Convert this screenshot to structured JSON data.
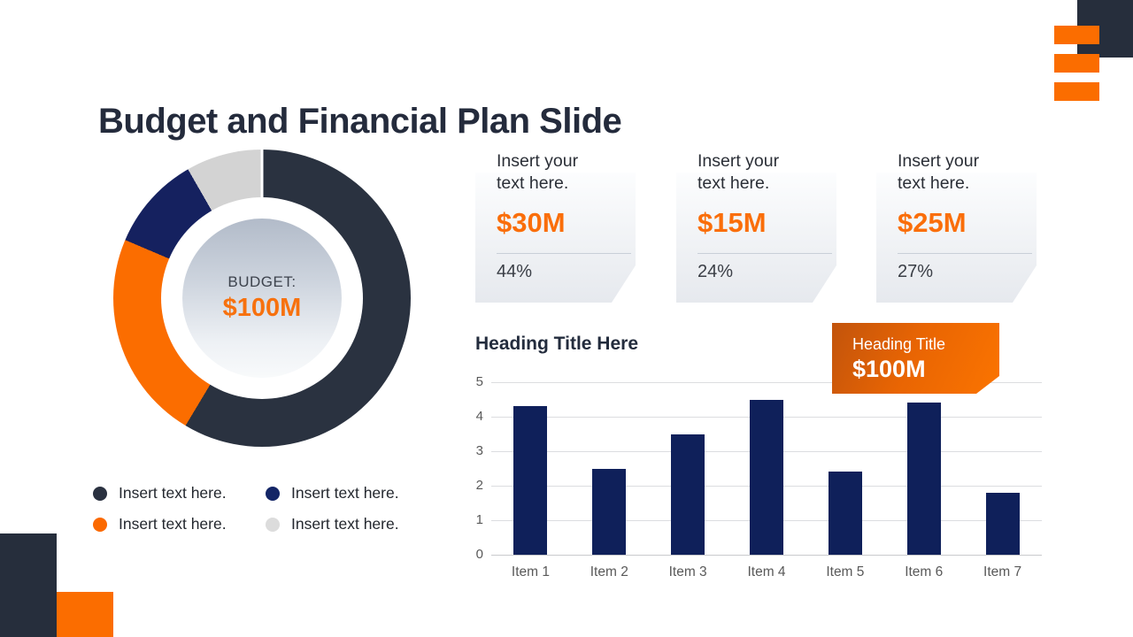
{
  "title": "Budget and Financial Plan Slide",
  "colors": {
    "charcoal": "#262e3c",
    "orange": "#fb6d00",
    "navy": "#0f205a",
    "light_gray": "#d3d3d3",
    "accent_money": "#fa6e0a"
  },
  "donut": {
    "center_label": "BUDGET:",
    "center_value": "$100M"
  },
  "legend": [
    {
      "label": "Insert text here.",
      "color": "#2a3140"
    },
    {
      "label": "Insert text here.",
      "color": "#132566"
    },
    {
      "label": "Insert text here.",
      "color": "#fb6900"
    },
    {
      "label": "Insert text here.",
      "color": "#dcdcdc"
    }
  ],
  "stat_cards": [
    {
      "label": "Insert your text here.",
      "value": "$30M",
      "percent": "44%"
    },
    {
      "label": "Insert your text here.",
      "value": "$15M",
      "percent": "24%"
    },
    {
      "label": "Insert your text here.",
      "value": "$25M",
      "percent": "27%"
    }
  ],
  "bar_section": {
    "title": "Heading Title Here",
    "callout_label": "Heading Title",
    "callout_value": "$100M"
  },
  "chart_data": [
    {
      "type": "pie",
      "subtype": "donut",
      "title": "BUDGET: $100M",
      "segments": [
        {
          "name": "segment-charcoal",
          "color": "#2a3240",
          "percent": 58.6
        },
        {
          "name": "segment-orange",
          "color": "#fb6d00",
          "percent": 22.8
        },
        {
          "name": "segment-navy",
          "color": "#15215f",
          "percent": 10.3
        },
        {
          "name": "segment-gray",
          "color": "#d3d3d3",
          "percent": 8.3
        }
      ],
      "start_angle_deg": 0,
      "direction": "clockwise"
    },
    {
      "type": "bar",
      "title": "Heading Title Here",
      "categories": [
        "Item 1",
        "Item 2",
        "Item 3",
        "Item 4",
        "Item 5",
        "Item 6",
        "Item 7"
      ],
      "values": [
        4.3,
        2.5,
        3.5,
        4.5,
        2.4,
        4.4,
        1.8
      ],
      "yticks": [
        0,
        1,
        2,
        3,
        4,
        5
      ],
      "ylim": [
        0,
        5
      ],
      "xlabel": "",
      "ylabel": "",
      "grid": true,
      "bar_color": "#0f205a",
      "annotation": "Heading Title $100M"
    }
  ]
}
